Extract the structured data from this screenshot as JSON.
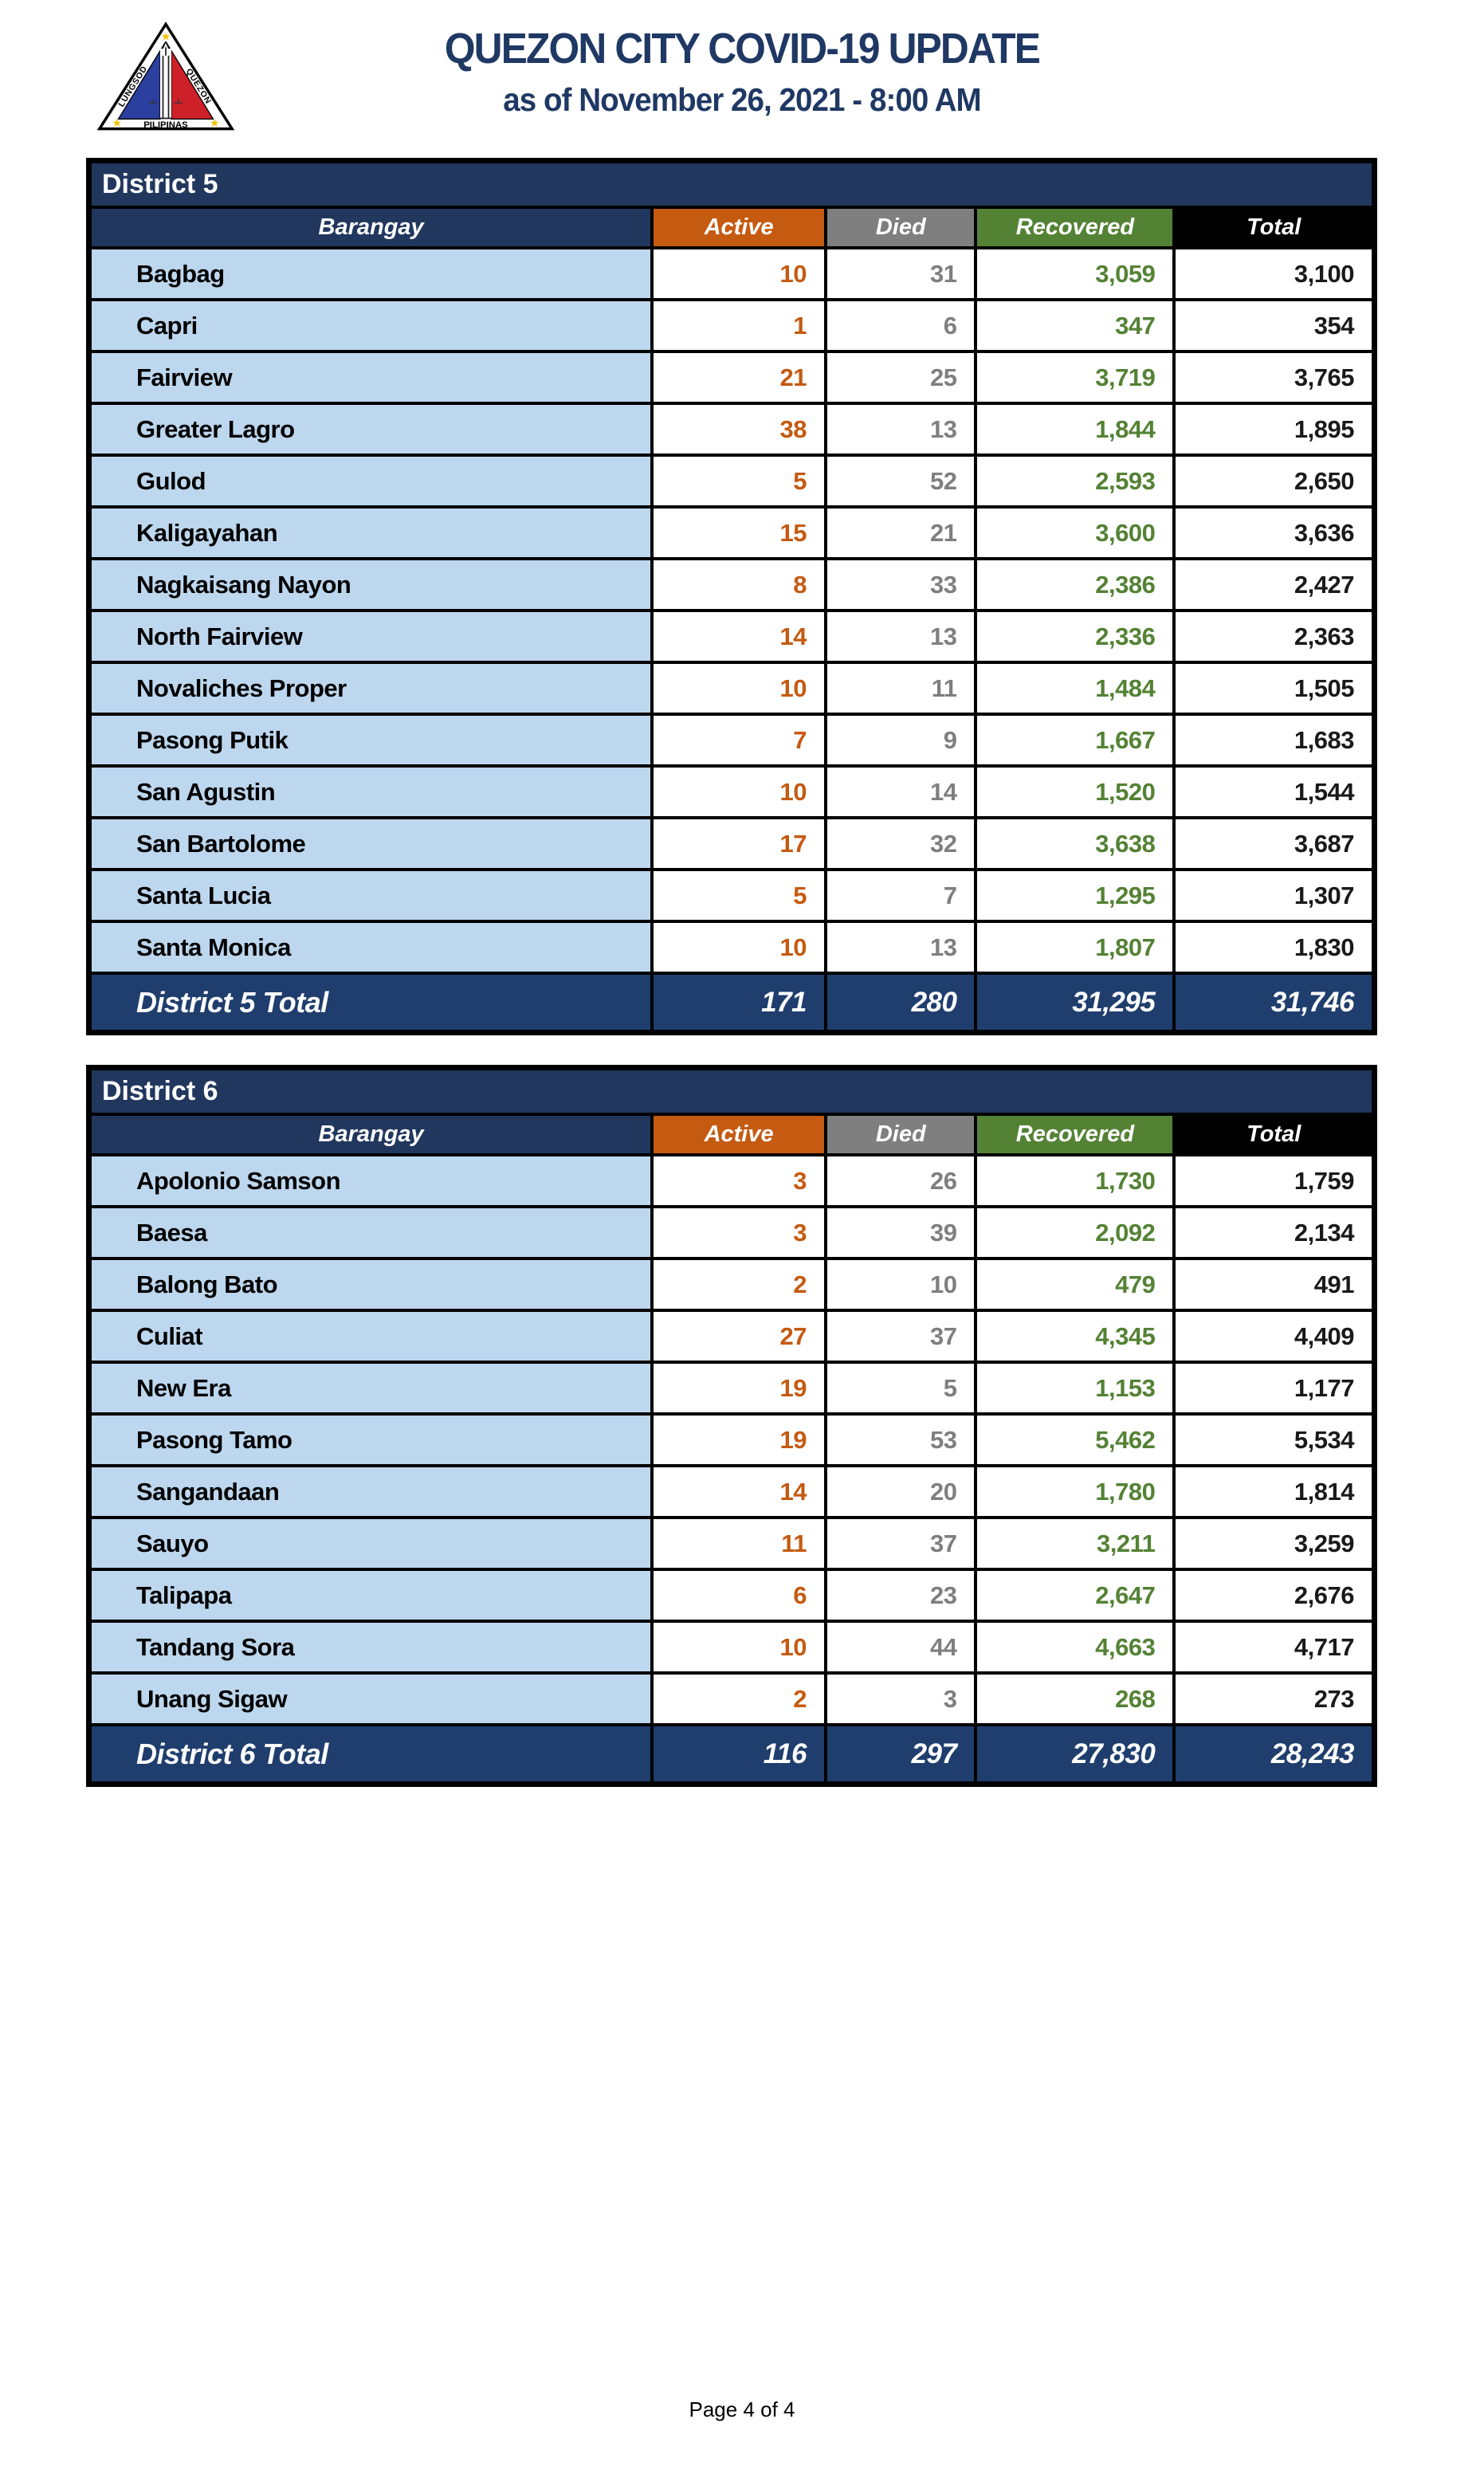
{
  "header": {
    "title": "QUEZON CITY COVID-19 UPDATE",
    "subtitle": "as of November 26, 2021 - 8:00 AM",
    "logo": {
      "side_left": "LUNGSOD",
      "side_right": "QUEZON",
      "bottom": "PILIPINAS"
    }
  },
  "columns": [
    "Barangay",
    "Active",
    "Died",
    "Recovered",
    "Total"
  ],
  "colors": {
    "navy_header": "#21375E",
    "navy_total": "#1F3E6D",
    "light_blue_row": "#BDD7EE",
    "active_orange": "#C55A11",
    "died_gray": "#7F7F7F",
    "recovered_green": "#548235",
    "total_black": "#000000",
    "title_navy": "#1F3864"
  },
  "tables": [
    {
      "district": "District 5",
      "total_label": "District 5 Total",
      "rows": [
        [
          "Bagbag",
          "10",
          "31",
          "3,059",
          "3,100"
        ],
        [
          "Capri",
          "1",
          "6",
          "347",
          "354"
        ],
        [
          "Fairview",
          "21",
          "25",
          "3,719",
          "3,765"
        ],
        [
          "Greater Lagro",
          "38",
          "13",
          "1,844",
          "1,895"
        ],
        [
          "Gulod",
          "5",
          "52",
          "2,593",
          "2,650"
        ],
        [
          "Kaligayahan",
          "15",
          "21",
          "3,600",
          "3,636"
        ],
        [
          "Nagkaisang Nayon",
          "8",
          "33",
          "2,386",
          "2,427"
        ],
        [
          "North Fairview",
          "14",
          "13",
          "2,336",
          "2,363"
        ],
        [
          "Novaliches Proper",
          "10",
          "11",
          "1,484",
          "1,505"
        ],
        [
          "Pasong Putik",
          "7",
          "9",
          "1,667",
          "1,683"
        ],
        [
          "San Agustin",
          "10",
          "14",
          "1,520",
          "1,544"
        ],
        [
          "San Bartolome",
          "17",
          "32",
          "3,638",
          "3,687"
        ],
        [
          "Santa Lucia",
          "5",
          "7",
          "1,295",
          "1,307"
        ],
        [
          "Santa Monica",
          "10",
          "13",
          "1,807",
          "1,830"
        ]
      ],
      "totals": [
        "171",
        "280",
        "31,295",
        "31,746"
      ]
    },
    {
      "district": "District 6",
      "total_label": "District 6 Total",
      "rows": [
        [
          "Apolonio Samson",
          "3",
          "26",
          "1,730",
          "1,759"
        ],
        [
          "Baesa",
          "3",
          "39",
          "2,092",
          "2,134"
        ],
        [
          "Balong Bato",
          "2",
          "10",
          "479",
          "491"
        ],
        [
          "Culiat",
          "27",
          "37",
          "4,345",
          "4,409"
        ],
        [
          "New Era",
          "19",
          "5",
          "1,153",
          "1,177"
        ],
        [
          "Pasong Tamo",
          "19",
          "53",
          "5,462",
          "5,534"
        ],
        [
          "Sangandaan",
          "14",
          "20",
          "1,780",
          "1,814"
        ],
        [
          "Sauyo",
          "11",
          "37",
          "3,211",
          "3,259"
        ],
        [
          "Talipapa",
          "6",
          "23",
          "2,647",
          "2,676"
        ],
        [
          "Tandang Sora",
          "10",
          "44",
          "4,663",
          "4,717"
        ],
        [
          "Unang Sigaw",
          "2",
          "3",
          "268",
          "273"
        ]
      ],
      "totals": [
        "116",
        "297",
        "27,830",
        "28,243"
      ]
    }
  ],
  "footer": {
    "page": "Page 4 of 4"
  }
}
